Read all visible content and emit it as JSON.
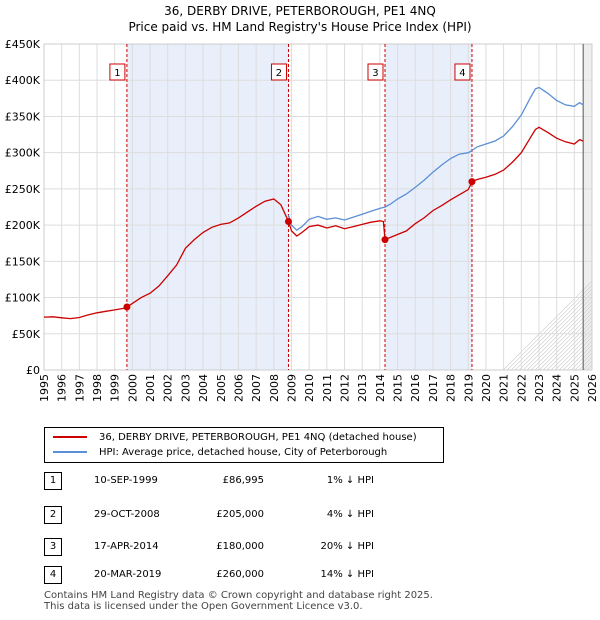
{
  "chart_data": {
    "type": "line",
    "title": "36, DERBY DRIVE, PETERBOROUGH, PE1 4NQ",
    "subtitle": "Price paid vs. HM Land Registry's House Price Index (HPI)",
    "xlim": [
      1995,
      2026
    ],
    "ylim": [
      0,
      450000
    ],
    "x_ticks": [
      1995,
      1996,
      1997,
      1998,
      1999,
      2000,
      2001,
      2002,
      2003,
      2004,
      2005,
      2006,
      2007,
      2008,
      2009,
      2010,
      2011,
      2012,
      2013,
      2014,
      2015,
      2016,
      2017,
      2018,
      2019,
      2020,
      2021,
      2022,
      2023,
      2024,
      2025,
      2026
    ],
    "y_ticks": [
      {
        "value": 0,
        "label": "£0"
      },
      {
        "value": 50000,
        "label": "£50K"
      },
      {
        "value": 100000,
        "label": "£100K"
      },
      {
        "value": 150000,
        "label": "£150K"
      },
      {
        "value": 200000,
        "label": "£200K"
      },
      {
        "value": 250000,
        "label": "£250K"
      },
      {
        "value": 300000,
        "label": "£300K"
      },
      {
        "value": 350000,
        "label": "£350K"
      },
      {
        "value": 400000,
        "label": "£400K"
      },
      {
        "value": 450000,
        "label": "£450K"
      }
    ],
    "series": [
      {
        "name": "36, DERBY DRIVE, PETERBOROUGH, PE1 4NQ (detached house)",
        "color": "#cc0000",
        "points": [
          [
            1995.0,
            73000
          ],
          [
            1995.5,
            73500
          ],
          [
            1996.0,
            72000
          ],
          [
            1996.5,
            71000
          ],
          [
            1997.0,
            72500
          ],
          [
            1997.5,
            76000
          ],
          [
            1998.0,
            79000
          ],
          [
            1998.5,
            81000
          ],
          [
            1999.0,
            83000
          ],
          [
            1999.5,
            85000
          ],
          [
            1999.69,
            86995
          ],
          [
            2000.0,
            92000
          ],
          [
            2000.5,
            100000
          ],
          [
            2001.0,
            106000
          ],
          [
            2001.5,
            116000
          ],
          [
            2002.0,
            130000
          ],
          [
            2002.5,
            145000
          ],
          [
            2003.0,
            168000
          ],
          [
            2003.5,
            180000
          ],
          [
            2004.0,
            190000
          ],
          [
            2004.5,
            197000
          ],
          [
            2005.0,
            201000
          ],
          [
            2005.5,
            203000
          ],
          [
            2006.0,
            210000
          ],
          [
            2006.5,
            218000
          ],
          [
            2007.0,
            226000
          ],
          [
            2007.5,
            233000
          ],
          [
            2008.0,
            236000
          ],
          [
            2008.4,
            228000
          ],
          [
            2008.83,
            205000
          ],
          [
            2009.0,
            192000
          ],
          [
            2009.3,
            185000
          ],
          [
            2009.6,
            190000
          ],
          [
            2010.0,
            198000
          ],
          [
            2010.5,
            200000
          ],
          [
            2011.0,
            196000
          ],
          [
            2011.5,
            199000
          ],
          [
            2012.0,
            195000
          ],
          [
            2012.5,
            198000
          ],
          [
            2013.0,
            201000
          ],
          [
            2013.5,
            204000
          ],
          [
            2014.0,
            206000
          ],
          [
            2014.2,
            205000
          ],
          [
            2014.29,
            180000
          ],
          [
            2014.6,
            183000
          ],
          [
            2015.0,
            187000
          ],
          [
            2015.5,
            192000
          ],
          [
            2016.0,
            202000
          ],
          [
            2016.5,
            210000
          ],
          [
            2017.0,
            220000
          ],
          [
            2017.5,
            227000
          ],
          [
            2018.0,
            235000
          ],
          [
            2018.5,
            242000
          ],
          [
            2019.0,
            249000
          ],
          [
            2019.21,
            260000
          ],
          [
            2019.5,
            263000
          ],
          [
            2020.0,
            266000
          ],
          [
            2020.5,
            270000
          ],
          [
            2021.0,
            276000
          ],
          [
            2021.5,
            287000
          ],
          [
            2022.0,
            300000
          ],
          [
            2022.5,
            320000
          ],
          [
            2022.8,
            332000
          ],
          [
            2023.0,
            335000
          ],
          [
            2023.5,
            328000
          ],
          [
            2024.0,
            320000
          ],
          [
            2024.5,
            315000
          ],
          [
            2025.0,
            312000
          ],
          [
            2025.3,
            318000
          ],
          [
            2025.5,
            316000
          ]
        ]
      },
      {
        "name": "HPI: Average price, detached house, City of Peterborough",
        "color": "#5b8fd6",
        "points": [
          [
            2008.83,
            214000
          ],
          [
            2009.0,
            200000
          ],
          [
            2009.3,
            193000
          ],
          [
            2009.6,
            198000
          ],
          [
            2010.0,
            208000
          ],
          [
            2010.5,
            212000
          ],
          [
            2011.0,
            208000
          ],
          [
            2011.5,
            210000
          ],
          [
            2012.0,
            207000
          ],
          [
            2012.5,
            211000
          ],
          [
            2013.0,
            215000
          ],
          [
            2013.5,
            219000
          ],
          [
            2014.0,
            223000
          ],
          [
            2014.29,
            225000
          ],
          [
            2014.6,
            229000
          ],
          [
            2015.0,
            236000
          ],
          [
            2015.5,
            243000
          ],
          [
            2016.0,
            252000
          ],
          [
            2016.5,
            262000
          ],
          [
            2017.0,
            273000
          ],
          [
            2017.5,
            283000
          ],
          [
            2018.0,
            292000
          ],
          [
            2018.5,
            298000
          ],
          [
            2019.0,
            300000
          ],
          [
            2019.21,
            303000
          ],
          [
            2019.5,
            308000
          ],
          [
            2020.0,
            312000
          ],
          [
            2020.5,
            316000
          ],
          [
            2021.0,
            323000
          ],
          [
            2021.5,
            336000
          ],
          [
            2022.0,
            352000
          ],
          [
            2022.5,
            375000
          ],
          [
            2022.8,
            388000
          ],
          [
            2023.0,
            390000
          ],
          [
            2023.5,
            382000
          ],
          [
            2024.0,
            372000
          ],
          [
            2024.5,
            366000
          ],
          [
            2025.0,
            364000
          ],
          [
            2025.3,
            369000
          ],
          [
            2025.5,
            366000
          ]
        ]
      }
    ],
    "sales": [
      {
        "id": "1",
        "year": 1999.69,
        "price": 86995,
        "date": "10-SEP-1999",
        "price_label": "£86,995",
        "hpi_label": "1% ↓ HPI"
      },
      {
        "id": "2",
        "year": 2008.83,
        "price": 205000,
        "date": "29-OCT-2008",
        "price_label": "£205,000",
        "hpi_label": "4% ↓ HPI"
      },
      {
        "id": "3",
        "year": 2014.29,
        "price": 180000,
        "date": "17-APR-2014",
        "price_label": "£180,000",
        "hpi_label": "20% ↓ HPI"
      },
      {
        "id": "4",
        "year": 2019.21,
        "price": 260000,
        "date": "20-MAR-2019",
        "price_label": "£260,000",
        "hpi_label": "14% ↓ HPI"
      }
    ],
    "shaded_periods": [
      [
        1999.69,
        2008.83
      ],
      [
        2014.29,
        2019.21
      ]
    ],
    "forecast_start": 2025.5
  },
  "legend": {
    "property_label": "36, DERBY DRIVE, PETERBOROUGH, PE1 4NQ (detached house)",
    "hpi_label": "HPI: Average price, detached house, City of Peterborough"
  },
  "footer": {
    "line1": "Contains HM Land Registry data © Crown copyright and database right 2025.",
    "line2": "This data is licensed under the Open Government Licence v3.0."
  }
}
